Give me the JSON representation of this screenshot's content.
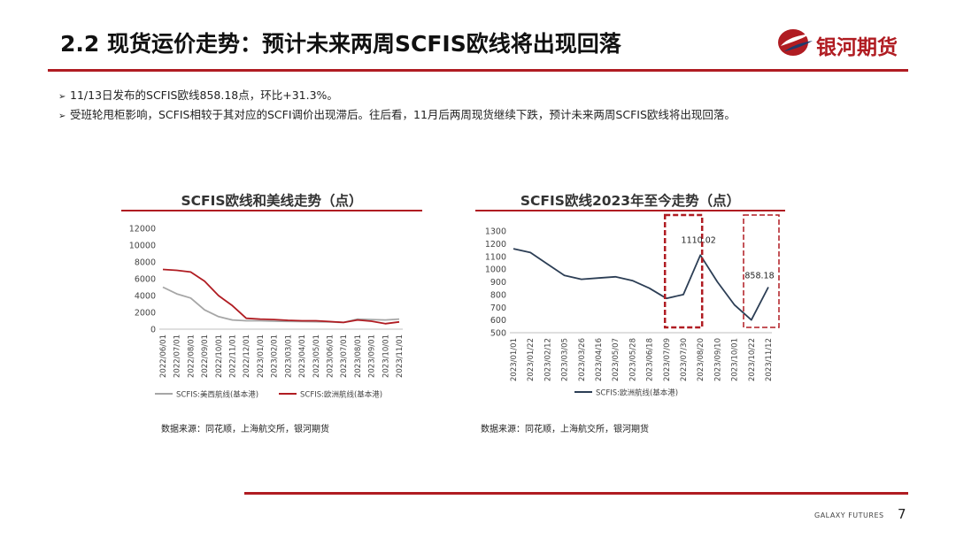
{
  "header": {
    "title": "2.2 现货运价走势：预计未来两周SCFIS欧线将出现回落",
    "logo_text": "银河期货",
    "accent_color": "#b01c22"
  },
  "bullets": [
    "11/13日发布的SCFIS欧线858.18点，环比+31.3%。",
    "受班轮甩柜影响，SCFIS相较于其对应的SCFI调价出现滞后。往后看，11月后两周现货继续下跌，预计未来两周SCFIS欧线将出现回落。"
  ],
  "chart_data": [
    {
      "type": "line",
      "title": "SCFIS欧线和美线走势（点）",
      "ylim": [
        0,
        12000
      ],
      "yticks": [
        "0",
        "2000",
        "4000",
        "6000",
        "8000",
        "10000",
        "12000"
      ],
      "x": [
        "2022/06/01",
        "2022/07/01",
        "2022/08/01",
        "2022/09/01",
        "2022/10/01",
        "2022/11/01",
        "2022/12/01",
        "2023/01/01",
        "2023/02/01",
        "2023/03/01",
        "2023/04/01",
        "2023/05/01",
        "2023/06/01",
        "2023/07/01",
        "2023/08/01",
        "2023/09/01",
        "2023/10/01",
        "2023/11/01"
      ],
      "series": [
        {
          "name": "SCFIS:美西航线(基本港)",
          "color": "#a6a6a6",
          "values": [
            5000,
            4200,
            3700,
            2300,
            1500,
            1100,
            1000,
            1000,
            950,
            930,
            900,
            880,
            850,
            800,
            1200,
            1150,
            1100,
            1200
          ]
        },
        {
          "name": "SCFIS:欧洲航线(基本港)",
          "color": "#b01c22",
          "values": [
            7100,
            7000,
            6800,
            5700,
            4000,
            2800,
            1300,
            1200,
            1150,
            1050,
            1000,
            1000,
            900,
            800,
            1100,
            950,
            650,
            860
          ]
        }
      ],
      "source": "数据来源：同花顺，上海航交所，银河期货"
    },
    {
      "type": "line",
      "title": "SCFIS欧线2023年至今走势（点）",
      "ylim": [
        500,
        1300
      ],
      "yticks": [
        "500",
        "600",
        "700",
        "800",
        "900",
        "1000",
        "1100",
        "1200",
        "1300"
      ],
      "x": [
        "2023/01/01",
        "2023/01/22",
        "2023/02/12",
        "2023/03/05",
        "2023/03/26",
        "2023/04/16",
        "2023/05/07",
        "2023/05/28",
        "2023/06/18",
        "2023/07/09",
        "2023/07/30",
        "2023/08/20",
        "2023/09/10",
        "2023/10/01",
        "2023/10/22",
        "2023/11/12"
      ],
      "series": [
        {
          "name": "SCFIS:欧洲航线(基本港)",
          "color": "#2c3e55",
          "values": [
            1160,
            1130,
            1040,
            950,
            920,
            930,
            940,
            910,
            850,
            770,
            800,
            1110.02,
            900,
            720,
            600,
            858.18
          ]
        }
      ],
      "annotations": [
        "1110.02",
        "858.18"
      ],
      "source": "数据来源：同花顺，上海航交所，银河期货"
    }
  ],
  "footer": {
    "brand": "GALAXY FUTURES",
    "page_number": "7"
  }
}
